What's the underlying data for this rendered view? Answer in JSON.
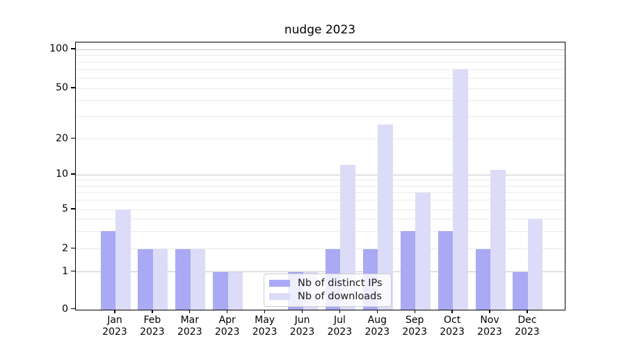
{
  "chart_data": {
    "type": "bar",
    "title": "nudge 2023",
    "categories": [
      "Jan",
      "Feb",
      "Mar",
      "Apr",
      "May",
      "Jun",
      "Jul",
      "Aug",
      "Sep",
      "Oct",
      "Nov",
      "Dec"
    ],
    "category_year": "2023",
    "series": [
      {
        "name": "Nb of distinct IPs",
        "color": "#a9a9f4",
        "values": [
          3,
          2,
          2,
          1,
          0,
          1,
          2,
          2,
          3,
          3,
          2,
          1
        ]
      },
      {
        "name": "Nb of downloads",
        "color": "#dcdcf8",
        "values": [
          5,
          2,
          2,
          1,
          0,
          1,
          12,
          26,
          7,
          70,
          11,
          4
        ]
      }
    ],
    "xlabel": "",
    "ylabel": "",
    "y_ticks": [
      0,
      1,
      2,
      5,
      10,
      20,
      50,
      100
    ],
    "ylim": [
      0,
      100
    ],
    "yscale": "log-like",
    "grid": "horizontal major and minor gridlines",
    "legend_position": "lower center inside plot"
  }
}
